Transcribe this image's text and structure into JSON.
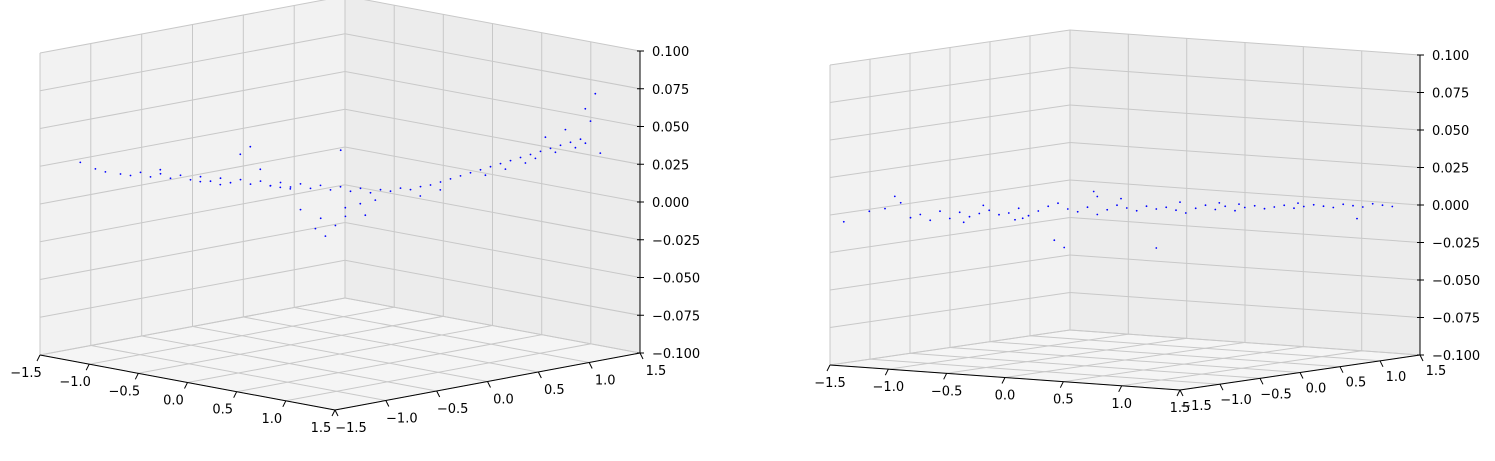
{
  "figure": {
    "background": "#ffffff",
    "pane_fill": "#f5f5f5",
    "grid_color": "#c8c8c8",
    "point_color": "#0000ff"
  },
  "chart_data": [
    {
      "type": "scatter",
      "title": "",
      "projection": "3d",
      "grid": true,
      "xlim": [
        -1.5,
        1.5
      ],
      "ylim": [
        -1.5,
        1.5
      ],
      "zlim": [
        -0.1,
        0.1
      ],
      "x_ticks": [
        "−1.5",
        "−1.0",
        "−0.5",
        "0.0",
        "0.5",
        "1.0",
        "1.5"
      ],
      "y_ticks": [
        "−1.5",
        "−1.0",
        "−0.5",
        "0.0",
        "0.5",
        "1.0",
        "1.5"
      ],
      "z_ticks": [
        "−0.100",
        "−0.075",
        "−0.050",
        "−0.025",
        "0.000",
        "0.025",
        "0.050",
        "0.075",
        "0.100"
      ],
      "series": [
        {
          "color": "#0000ff",
          "points": [
            [
              -1.4,
              -1.2,
              0.025
            ],
            [
              -1.35,
              -1.1,
              0.02
            ],
            [
              -1.3,
              -1.05,
              0.018
            ],
            [
              -1.25,
              -0.95,
              0.016
            ],
            [
              -1.2,
              -0.9,
              0.015
            ],
            [
              -1.15,
              -0.85,
              0.017
            ],
            [
              -1.1,
              -0.8,
              0.014
            ],
            [
              -1.05,
              -0.75,
              0.016
            ],
            [
              -1.0,
              -0.7,
              0.013
            ],
            [
              -0.95,
              -0.65,
              0.015
            ],
            [
              -0.9,
              -0.6,
              0.012
            ],
            [
              -0.85,
              -0.55,
              0.014
            ],
            [
              -0.8,
              -0.5,
              0.011
            ],
            [
              -0.75,
              -0.45,
              0.013
            ],
            [
              -0.7,
              -0.4,
              0.01
            ],
            [
              -0.65,
              -0.35,
              0.012
            ],
            [
              -0.6,
              -0.3,
              0.009
            ],
            [
              -0.55,
              -0.25,
              0.011
            ],
            [
              -0.5,
              -0.2,
              0.008
            ],
            [
              -0.45,
              -0.15,
              0.01
            ],
            [
              -0.4,
              -0.1,
              0.007
            ],
            [
              -0.35,
              -0.05,
              0.009
            ],
            [
              -0.3,
              0.0,
              0.006
            ],
            [
              -0.25,
              0.05,
              0.008
            ],
            [
              -0.2,
              0.1,
              0.005
            ],
            [
              -0.15,
              0.15,
              0.007
            ],
            [
              -0.1,
              0.2,
              0.004
            ],
            [
              -0.05,
              0.25,
              0.006
            ],
            [
              0.0,
              0.3,
              0.003
            ],
            [
              0.05,
              0.35,
              0.005
            ],
            [
              0.1,
              0.4,
              0.004
            ],
            [
              0.15,
              0.45,
              0.006
            ],
            [
              0.2,
              0.5,
              0.005
            ],
            [
              0.25,
              0.55,
              0.007
            ],
            [
              0.3,
              0.6,
              0.008
            ],
            [
              0.35,
              0.65,
              0.01
            ],
            [
              0.4,
              0.7,
              0.012
            ],
            [
              0.45,
              0.75,
              0.014
            ],
            [
              0.5,
              0.8,
              0.016
            ],
            [
              0.55,
              0.85,
              0.018
            ],
            [
              0.6,
              0.9,
              0.02
            ],
            [
              0.65,
              0.95,
              0.022
            ],
            [
              0.7,
              1.0,
              0.024
            ],
            [
              0.75,
              1.05,
              0.026
            ],
            [
              0.8,
              1.1,
              0.028
            ],
            [
              0.85,
              1.15,
              0.03
            ],
            [
              0.9,
              1.2,
              0.032
            ],
            [
              0.95,
              1.25,
              0.034
            ],
            [
              1.0,
              1.3,
              0.036
            ],
            [
              1.05,
              1.35,
              0.038
            ],
            [
              1.1,
              1.4,
              0.05
            ],
            [
              1.15,
              1.3,
              0.06
            ],
            [
              1.2,
              1.35,
              0.07
            ],
            [
              1.0,
              1.25,
              0.045
            ],
            [
              0.9,
              1.15,
              0.04
            ],
            [
              -0.3,
              0.1,
              -0.015
            ],
            [
              -0.25,
              0.0,
              -0.02
            ],
            [
              -0.2,
              0.05,
              -0.025
            ],
            [
              -0.15,
              0.1,
              -0.018
            ],
            [
              -0.1,
              0.15,
              -0.012
            ],
            [
              -0.35,
              -0.05,
              -0.008
            ],
            [
              0.05,
              0.2,
              -0.01
            ],
            [
              -0.05,
              0.1,
              -0.005
            ],
            [
              0.1,
              0.25,
              0.0
            ],
            [
              0.0,
              0.2,
              -0.003
            ],
            [
              -0.6,
              -0.4,
              0.03
            ],
            [
              -0.55,
              -0.35,
              0.035
            ],
            [
              -0.5,
              -0.3,
              0.02
            ],
            [
              -0.2,
              0.2,
              0.03
            ],
            [
              -1.0,
              -0.8,
              0.02
            ],
            [
              0.3,
              0.5,
              0.002
            ],
            [
              0.4,
              0.6,
              0.006
            ],
            [
              0.6,
              0.85,
              0.015
            ],
            [
              0.7,
              0.95,
              0.019
            ],
            [
              0.8,
              1.05,
              0.023
            ],
            [
              0.85,
              1.1,
              0.026
            ],
            [
              0.95,
              1.2,
              0.03
            ],
            [
              1.05,
              1.3,
              0.033
            ],
            [
              1.1,
              1.35,
              0.036
            ],
            [
              1.2,
              1.4,
              0.03
            ],
            [
              -0.8,
              -0.6,
              0.012
            ],
            [
              -0.7,
              -0.5,
              0.01
            ],
            [
              -0.45,
              -0.25,
              0.009
            ],
            [
              -0.4,
              -0.2,
              0.008
            ],
            [
              -0.35,
              -0.15,
              0.007
            ]
          ]
        }
      ]
    },
    {
      "type": "scatter",
      "title": "",
      "projection": "3d",
      "grid": true,
      "xlim": [
        -1.5,
        1.5
      ],
      "ylim": [
        -1.5,
        1.5
      ],
      "zlim": [
        -0.1,
        0.1
      ],
      "x_ticks": [
        "−1.5",
        "−1.0",
        "−0.5",
        "0.0",
        "0.5",
        "1.0",
        "1.5"
      ],
      "y_ticks": [
        "−1.5",
        "−1.0",
        "−0.5",
        "0.0",
        "0.5",
        "1.0",
        "1.5"
      ],
      "z_ticks": [
        "−0.100",
        "−0.075",
        "−0.050",
        "−0.025",
        "0.000",
        "0.025",
        "0.050",
        "0.075",
        "0.100"
      ],
      "series": [
        {
          "color": "#0000ff",
          "points": [
            [
              -1.45,
              -1.4,
              -0.005
            ],
            [
              -1.3,
              -1.3,
              0.002
            ],
            [
              -1.2,
              -1.25,
              0.004
            ],
            [
              -1.1,
              -1.2,
              0.008
            ],
            [
              -1.05,
              -1.15,
              -0.002
            ],
            [
              -1.0,
              -1.1,
              0.0
            ],
            [
              -0.95,
              -1.05,
              -0.004
            ],
            [
              -0.9,
              -1.0,
              0.002
            ],
            [
              -0.85,
              -0.95,
              -0.003
            ],
            [
              -0.8,
              -0.9,
              0.001
            ],
            [
              -0.75,
              -0.85,
              -0.002
            ],
            [
              -0.7,
              -0.8,
              0.0
            ],
            [
              -0.65,
              -0.75,
              0.002
            ],
            [
              -0.6,
              -0.7,
              -0.001
            ],
            [
              -0.55,
              -0.65,
              0.0
            ],
            [
              -0.5,
              -0.6,
              0.003
            ],
            [
              -0.45,
              -0.55,
              -0.002
            ],
            [
              -0.4,
              -0.5,
              0.001
            ],
            [
              -0.35,
              -0.45,
              0.004
            ],
            [
              -0.3,
              -0.4,
              0.006
            ],
            [
              -0.25,
              -0.35,
              0.002
            ],
            [
              -0.2,
              -0.3,
              0.0
            ],
            [
              -0.15,
              -0.25,
              0.003
            ],
            [
              -0.1,
              -0.2,
              -0.002
            ],
            [
              -0.05,
              -0.15,
              0.001
            ],
            [
              0.0,
              -0.1,
              0.004
            ],
            [
              0.05,
              -0.05,
              0.002
            ],
            [
              0.1,
              0.0,
              0.0
            ],
            [
              0.15,
              0.05,
              0.003
            ],
            [
              0.2,
              0.1,
              0.001
            ],
            [
              0.25,
              0.15,
              0.002
            ],
            [
              0.3,
              0.2,
              0.0
            ],
            [
              0.35,
              0.25,
              -0.002
            ],
            [
              0.4,
              0.3,
              0.001
            ],
            [
              0.45,
              0.35,
              0.003
            ],
            [
              0.5,
              0.4,
              0.0
            ],
            [
              0.55,
              0.45,
              0.002
            ],
            [
              0.6,
              0.5,
              -0.001
            ],
            [
              0.65,
              0.55,
              0.001
            ],
            [
              0.7,
              0.6,
              0.002
            ],
            [
              0.75,
              0.65,
              0.0
            ],
            [
              0.8,
              0.7,
              0.001
            ],
            [
              0.85,
              0.75,
              0.002
            ],
            [
              0.9,
              0.8,
              0.0
            ],
            [
              0.95,
              0.85,
              0.001
            ],
            [
              1.0,
              0.9,
              0.002
            ],
            [
              1.05,
              0.95,
              0.001
            ],
            [
              1.1,
              1.0,
              0.0
            ],
            [
              1.15,
              1.05,
              0.002
            ],
            [
              1.2,
              1.1,
              0.001
            ],
            [
              1.25,
              1.15,
              0.0
            ],
            [
              1.3,
              1.2,
              0.002
            ],
            [
              1.35,
              1.25,
              0.001
            ],
            [
              1.4,
              1.3,
              0.0
            ],
            [
              1.2,
              1.15,
              -0.008
            ],
            [
              -0.4,
              -0.3,
              -0.02
            ],
            [
              -0.35,
              -0.25,
              -0.025
            ],
            [
              -0.2,
              -0.1,
              0.012
            ],
            [
              -0.6,
              -0.5,
              -0.006
            ],
            [
              0.2,
              0.1,
              -0.025
            ],
            [
              -1.15,
              -1.2,
              0.012
            ],
            [
              -0.1,
              -0.2,
              0.01
            ],
            [
              0.0,
              -0.05,
              0.008
            ],
            [
              0.3,
              0.25,
              0.005
            ],
            [
              0.5,
              0.45,
              0.004
            ],
            [
              -0.7,
              -0.75,
              0.005
            ],
            [
              -0.8,
              -0.85,
              -0.006
            ],
            [
              -0.5,
              -0.55,
              -0.004
            ],
            [
              0.6,
              0.55,
              0.003
            ],
            [
              0.9,
              0.85,
              0.003
            ]
          ]
        }
      ]
    }
  ]
}
